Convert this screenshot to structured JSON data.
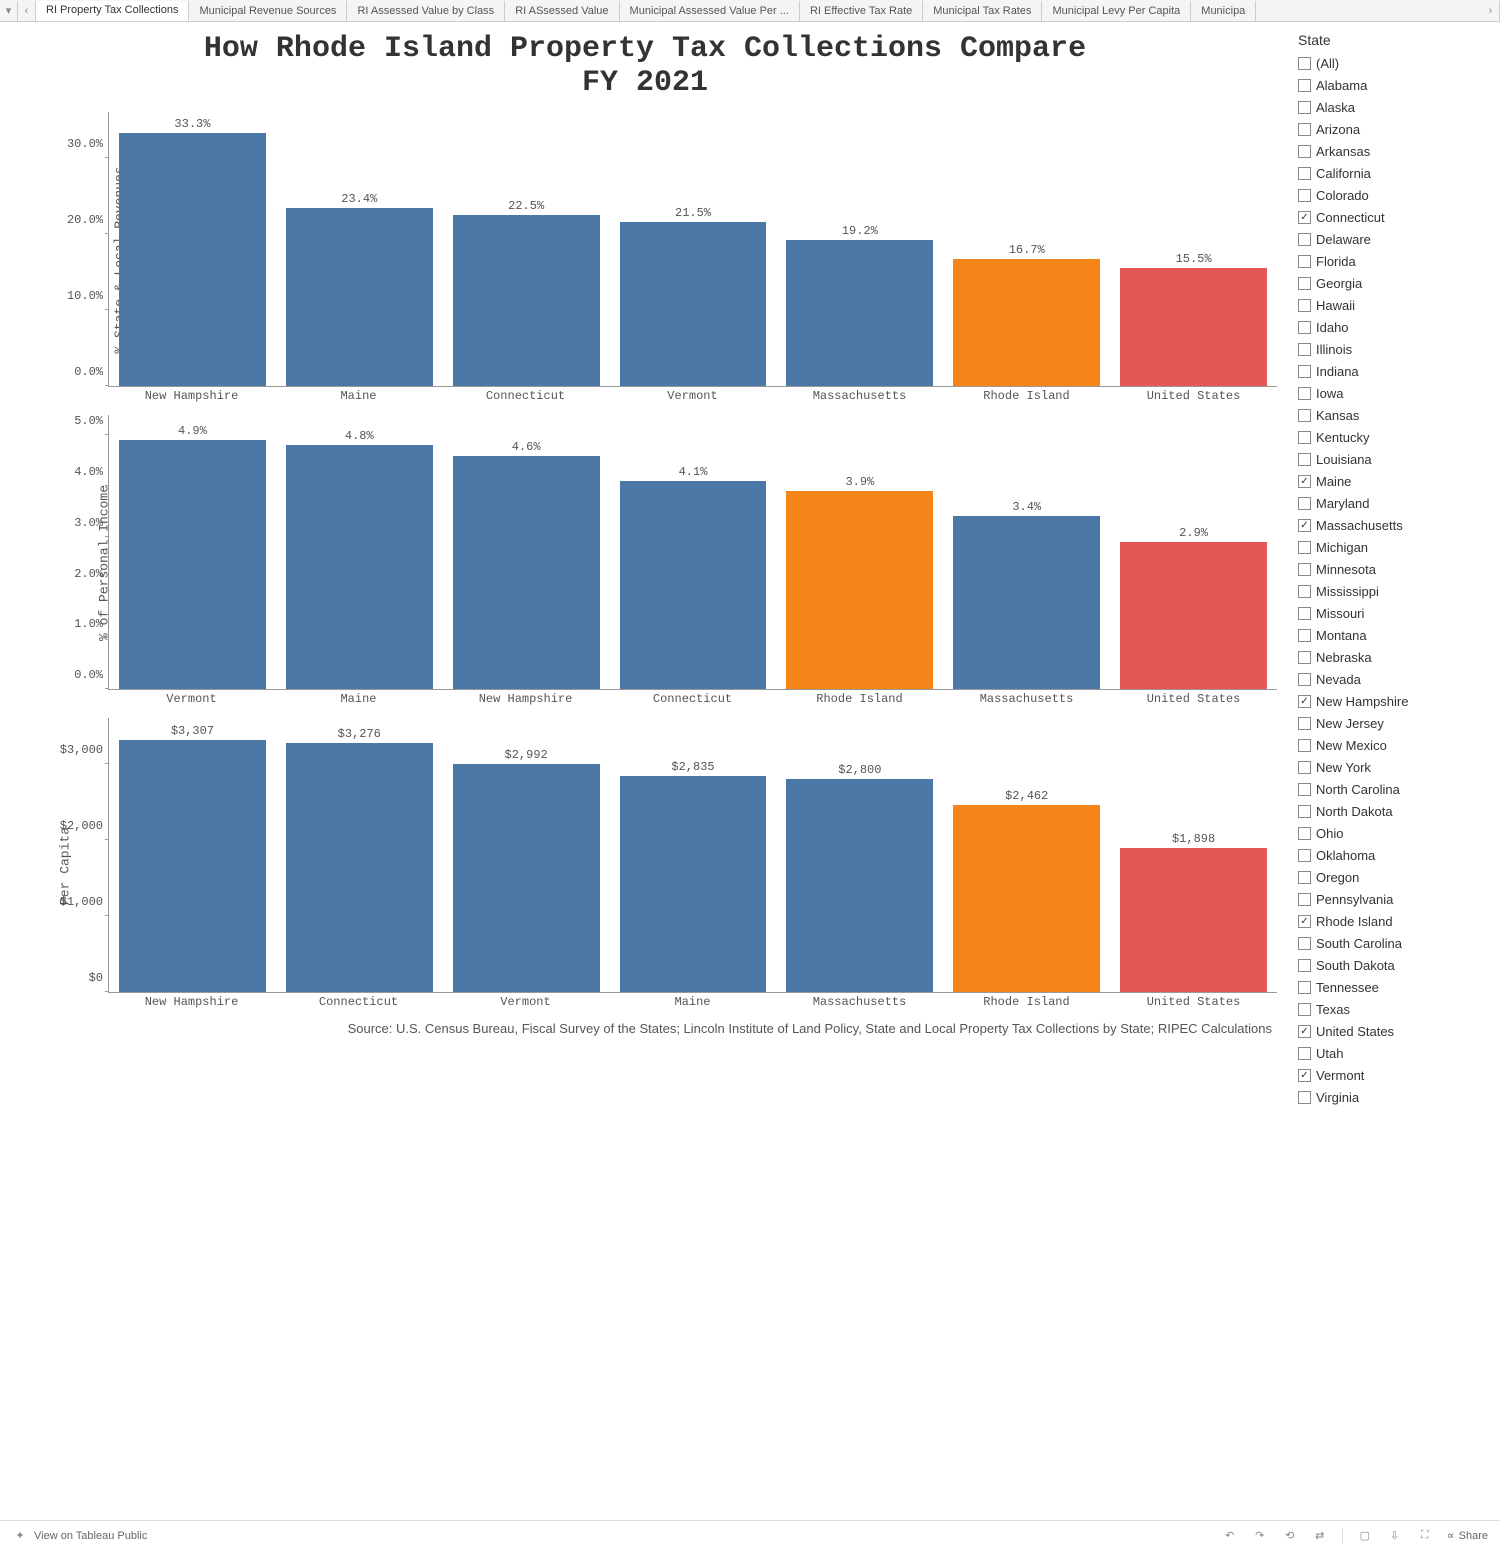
{
  "tabs": {
    "items": [
      "RI Property Tax Collections",
      "Municipal Revenue Sources",
      "RI Assessed Value by Class",
      "RI ASsessed Value",
      "Municipal Assessed Value Per ...",
      "RI Effective Tax Rate",
      "Municipal Tax Rates",
      "Municipal Levy Per Capita",
      "Municipa"
    ],
    "active_index": 0
  },
  "title": {
    "line1": "How Rhode Island Property Tax Collections Compare",
    "line2": "FY 2021",
    "fontsize": 30
  },
  "colors": {
    "default_bar": "#4c78a8",
    "rhode_island": "#f58518",
    "united_states": "#e45756",
    "axis": "#999999",
    "text": "#555555",
    "background": "#ffffff"
  },
  "charts": [
    {
      "y_label": "% State & Local Revenues",
      "y_max": 36,
      "y_ticks": [
        0,
        10,
        20,
        30
      ],
      "y_tick_labels": [
        "0.0%",
        "10.0%",
        "20.0%",
        "30.0%"
      ],
      "bars": [
        {
          "category": "New Hampshire",
          "value": 33.3,
          "label": "33.3%",
          "color_key": "default_bar"
        },
        {
          "category": "Maine",
          "value": 23.4,
          "label": "23.4%",
          "color_key": "default_bar"
        },
        {
          "category": "Connecticut",
          "value": 22.5,
          "label": "22.5%",
          "color_key": "default_bar"
        },
        {
          "category": "Vermont",
          "value": 21.5,
          "label": "21.5%",
          "color_key": "default_bar"
        },
        {
          "category": "Massachusetts",
          "value": 19.2,
          "label": "19.2%",
          "color_key": "default_bar"
        },
        {
          "category": "Rhode Island",
          "value": 16.7,
          "label": "16.7%",
          "color_key": "rhode_island"
        },
        {
          "category": "United States",
          "value": 15.5,
          "label": "15.5%",
          "color_key": "united_states"
        }
      ]
    },
    {
      "y_label": "% of Personal Income",
      "y_max": 5.4,
      "y_ticks": [
        0,
        1,
        2,
        3,
        4,
        5
      ],
      "y_tick_labels": [
        "0.0%",
        "1.0%",
        "2.0%",
        "3.0%",
        "4.0%",
        "5.0%"
      ],
      "bars": [
        {
          "category": "Vermont",
          "value": 4.9,
          "label": "4.9%",
          "color_key": "default_bar"
        },
        {
          "category": "Maine",
          "value": 4.8,
          "label": "4.8%",
          "color_key": "default_bar"
        },
        {
          "category": "New Hampshire",
          "value": 4.6,
          "label": "4.6%",
          "color_key": "default_bar"
        },
        {
          "category": "Connecticut",
          "value": 4.1,
          "label": "4.1%",
          "color_key": "default_bar"
        },
        {
          "category": "Rhode Island",
          "value": 3.9,
          "label": "3.9%",
          "color_key": "rhode_island"
        },
        {
          "category": "Massachusetts",
          "value": 3.4,
          "label": "3.4%",
          "color_key": "default_bar"
        },
        {
          "category": "United States",
          "value": 2.9,
          "label": "2.9%",
          "color_key": "united_states"
        }
      ]
    },
    {
      "y_label": "Per Capita",
      "y_max": 3600,
      "y_ticks": [
        0,
        1000,
        2000,
        3000
      ],
      "y_tick_labels": [
        "$0",
        "$1,000",
        "$2,000",
        "$3,000"
      ],
      "bars": [
        {
          "category": "New Hampshire",
          "value": 3307,
          "label": "$3,307",
          "color_key": "default_bar"
        },
        {
          "category": "Connecticut",
          "value": 3276,
          "label": "$3,276",
          "color_key": "default_bar"
        },
        {
          "category": "Vermont",
          "value": 2992,
          "label": "$2,992",
          "color_key": "default_bar"
        },
        {
          "category": "Maine",
          "value": 2835,
          "label": "$2,835",
          "color_key": "default_bar"
        },
        {
          "category": "Massachusetts",
          "value": 2800,
          "label": "$2,800",
          "color_key": "default_bar"
        },
        {
          "category": "Rhode Island",
          "value": 2462,
          "label": "$2,462",
          "color_key": "rhode_island"
        },
        {
          "category": "United States",
          "value": 1898,
          "label": "$1,898",
          "color_key": "united_states"
        }
      ]
    }
  ],
  "source": "Source: U.S. Census Bureau, Fiscal Survey of the States; Lincoln Institute of Land Policy, State and Local Property Tax Collections by State; RIPEC Calculations",
  "filter": {
    "title": "State",
    "items": [
      {
        "label": "(All)",
        "checked": false
      },
      {
        "label": "Alabama",
        "checked": false
      },
      {
        "label": "Alaska",
        "checked": false
      },
      {
        "label": "Arizona",
        "checked": false
      },
      {
        "label": "Arkansas",
        "checked": false
      },
      {
        "label": "California",
        "checked": false
      },
      {
        "label": "Colorado",
        "checked": false
      },
      {
        "label": "Connecticut",
        "checked": true
      },
      {
        "label": "Delaware",
        "checked": false
      },
      {
        "label": "Florida",
        "checked": false
      },
      {
        "label": "Georgia",
        "checked": false
      },
      {
        "label": "Hawaii",
        "checked": false
      },
      {
        "label": "Idaho",
        "checked": false
      },
      {
        "label": "Illinois",
        "checked": false
      },
      {
        "label": "Indiana",
        "checked": false
      },
      {
        "label": "Iowa",
        "checked": false
      },
      {
        "label": "Kansas",
        "checked": false
      },
      {
        "label": "Kentucky",
        "checked": false
      },
      {
        "label": "Louisiana",
        "checked": false
      },
      {
        "label": "Maine",
        "checked": true
      },
      {
        "label": "Maryland",
        "checked": false
      },
      {
        "label": "Massachusetts",
        "checked": true
      },
      {
        "label": "Michigan",
        "checked": false
      },
      {
        "label": "Minnesota",
        "checked": false
      },
      {
        "label": "Mississippi",
        "checked": false
      },
      {
        "label": "Missouri",
        "checked": false
      },
      {
        "label": "Montana",
        "checked": false
      },
      {
        "label": "Nebraska",
        "checked": false
      },
      {
        "label": "Nevada",
        "checked": false
      },
      {
        "label": "New Hampshire",
        "checked": true
      },
      {
        "label": "New Jersey",
        "checked": false
      },
      {
        "label": "New Mexico",
        "checked": false
      },
      {
        "label": "New York",
        "checked": false
      },
      {
        "label": "North Carolina",
        "checked": false
      },
      {
        "label": "North Dakota",
        "checked": false
      },
      {
        "label": "Ohio",
        "checked": false
      },
      {
        "label": "Oklahoma",
        "checked": false
      },
      {
        "label": "Oregon",
        "checked": false
      },
      {
        "label": "Pennsylvania",
        "checked": false
      },
      {
        "label": "Rhode Island",
        "checked": true
      },
      {
        "label": "South Carolina",
        "checked": false
      },
      {
        "label": "South Dakota",
        "checked": false
      },
      {
        "label": "Tennessee",
        "checked": false
      },
      {
        "label": "Texas",
        "checked": false
      },
      {
        "label": "United States",
        "checked": true
      },
      {
        "label": "Utah",
        "checked": false
      },
      {
        "label": "Vermont",
        "checked": true
      },
      {
        "label": "Virginia",
        "checked": false
      }
    ]
  },
  "bottom_bar": {
    "view_label": "View on Tableau Public",
    "share_label": "Share"
  }
}
